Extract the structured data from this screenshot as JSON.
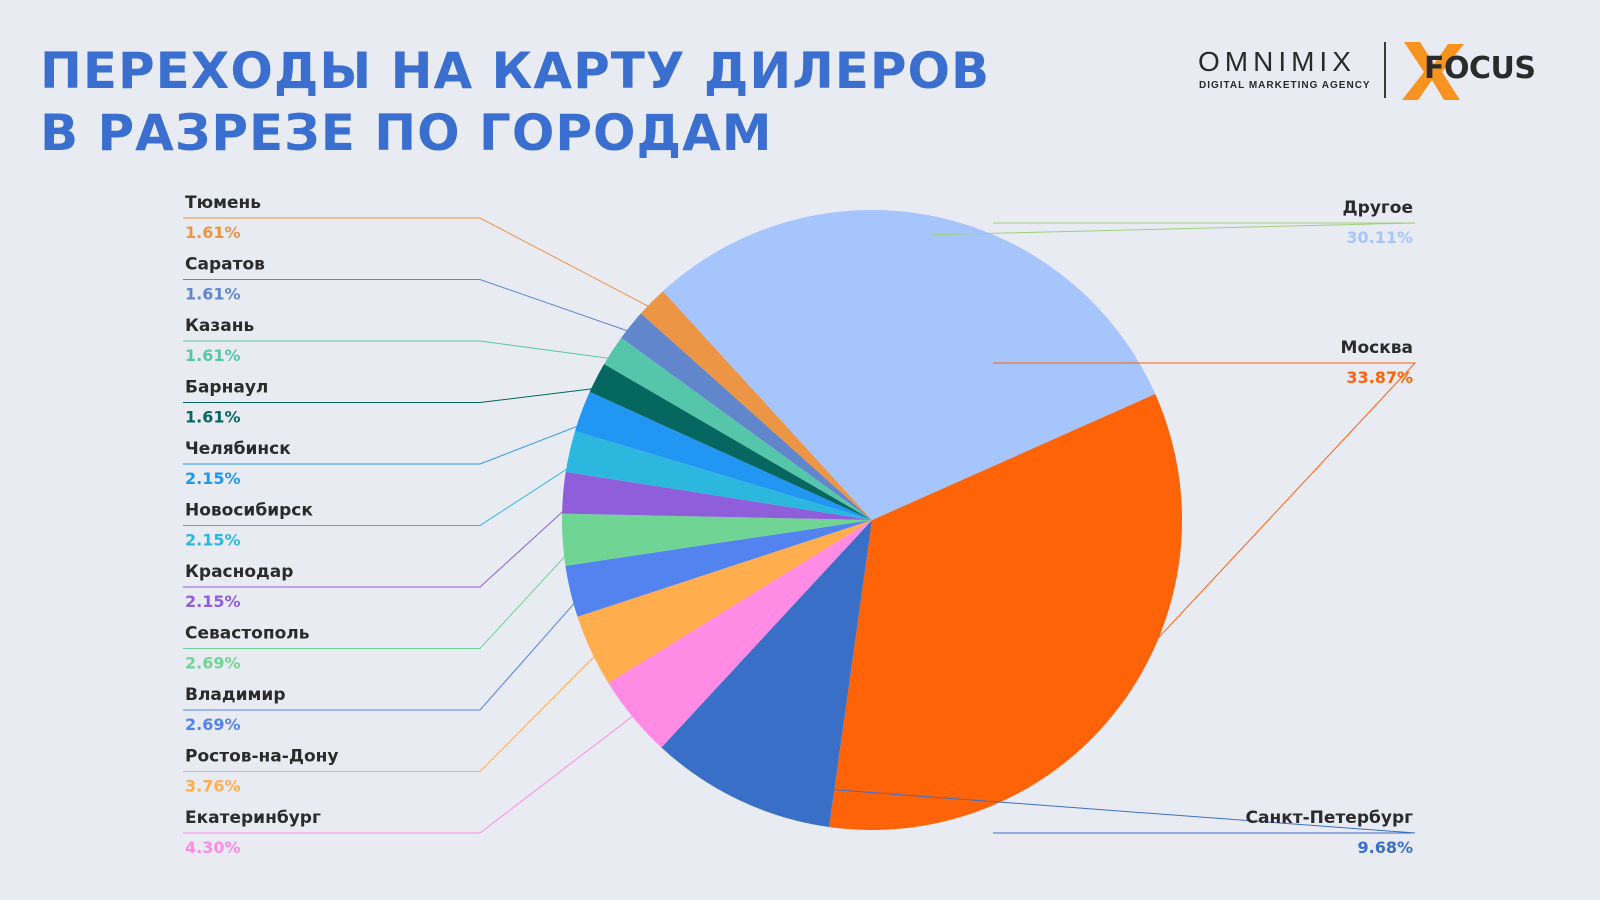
{
  "header": {
    "title_line1": "ПЕРЕХОДЫ НА КАРТУ ДИЛЕРОВ",
    "title_line2": "В РАЗРЕЗЕ ПО ГОРОДАМ"
  },
  "logos": {
    "omnimix": "OMNIMIX",
    "omnimix_sub": "DIGITAL MARKETING AGENCY",
    "focus": "FOCUS",
    "focus_color": "#f7931e"
  },
  "chart_data": {
    "type": "pie",
    "start_angle_deg": 66,
    "slices": [
      {
        "label": "Москва",
        "display": "33.87%",
        "value": 33.87,
        "color": "#ff6308",
        "side": "right"
      },
      {
        "label": "Санкт-Петербург",
        "display": "9.68%",
        "value": 9.68,
        "color": "#3a6fc8",
        "side": "right"
      },
      {
        "label": "Екатеринбург",
        "display": "4.30%",
        "value": 4.3,
        "color": "#ff8be4",
        "side": "left"
      },
      {
        "label": "Ростов-на-Дону",
        "display": "3.76%",
        "value": 3.76,
        "color": "#ffad4d",
        "side": "left"
      },
      {
        "label": "Владимир",
        "display": "2.69%",
        "value": 2.69,
        "color": "#5283ef",
        "side": "left"
      },
      {
        "label": "Севастополь",
        "display": "2.69%",
        "value": 2.69,
        "color": "#6fd494",
        "side": "left"
      },
      {
        "label": "Краснодар",
        "display": "2.15%",
        "value": 2.15,
        "color": "#8f5edb",
        "side": "left"
      },
      {
        "label": "Новосибирск",
        "display": "2.15%",
        "value": 2.15,
        "color": "#2cb8de",
        "side": "left"
      },
      {
        "label": "Челябинск",
        "display": "2.15%",
        "value": 2.15,
        "color": "#2196f3",
        "side": "left"
      },
      {
        "label": "Барнаул",
        "display": "1.61%",
        "value": 1.61,
        "color": "#05675f",
        "side": "left"
      },
      {
        "label": "Казань",
        "display": "1.61%",
        "value": 1.61,
        "color": "#55c6aa",
        "side": "left"
      },
      {
        "label": "Саратов",
        "display": "1.61%",
        "value": 1.61,
        "color": "#6286cc",
        "side": "left"
      },
      {
        "label": "Тюмень",
        "display": "1.61%",
        "value": 1.61,
        "color": "#ec9544",
        "side": "left"
      },
      {
        "label": "Другое",
        "display": "30.11%",
        "value": 30.11,
        "color": "#a7c5fd",
        "side": "right",
        "pct_color": "#a7c5fd",
        "line_color": "#9fd07c"
      }
    ],
    "left_label_order": [
      "Тюмень",
      "Саратов",
      "Казань",
      "Барнаул",
      "Челябинск",
      "Новосибирск",
      "Краснодар",
      "Севастополь",
      "Владимир",
      "Ростов-на-Дону",
      "Екатеринбург"
    ],
    "right_label_order": [
      "Другое",
      "Москва",
      "Санкт-Петербург"
    ]
  }
}
